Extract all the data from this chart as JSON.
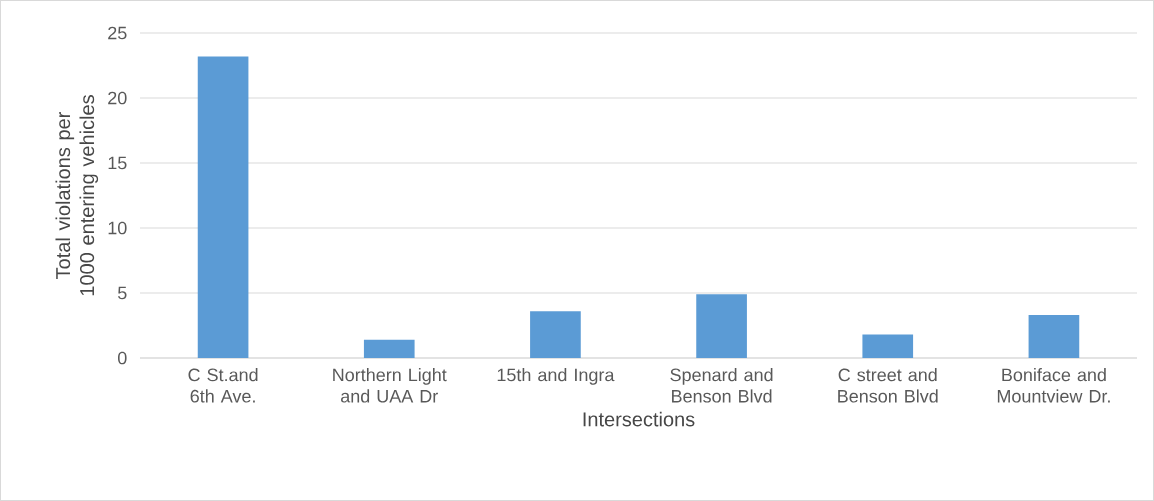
{
  "chart_data": {
    "type": "bar",
    "xlabel": "Intersections",
    "ylabel": "Total violations per 1000 entering vehicles",
    "categories": [
      "C St.and 6th Ave.",
      "Northern Light and UAA Dr",
      "15th and Ingra",
      "Spenard and Benson Blvd",
      "C street and Benson Blvd",
      "Boniface and Mountview Dr."
    ],
    "values": [
      23.2,
      1.4,
      3.6,
      4.9,
      1.8,
      3.3
    ],
    "color": "#5b9bd5",
    "ylim": [
      0,
      25
    ],
    "yticks": [
      0,
      5,
      10,
      15,
      20,
      25
    ],
    "grid": "y"
  }
}
